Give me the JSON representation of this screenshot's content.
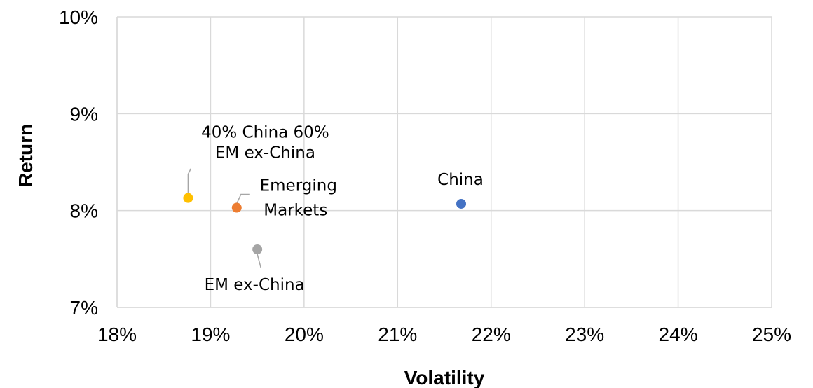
{
  "chart_data": {
    "type": "scatter",
    "title": "",
    "xlabel": "Volatility",
    "ylabel": "Return",
    "xlim": [
      0.18,
      0.25
    ],
    "ylim": [
      0.07,
      0.1
    ],
    "x_ticks": [
      0.18,
      0.19,
      0.2,
      0.21,
      0.22,
      0.23,
      0.24,
      0.25
    ],
    "y_ticks": [
      0.07,
      0.08,
      0.09,
      0.1
    ],
    "x_tick_labels": [
      "18%",
      "19%",
      "20%",
      "21%",
      "22%",
      "23%",
      "24%",
      "25%"
    ],
    "y_tick_labels": [
      "7%",
      "8%",
      "9%",
      "10%"
    ],
    "grid": true,
    "legend": "none",
    "points": [
      {
        "label": "40% China 60% EM ex-China",
        "label_lines": [
          "40% China 60%",
          "EM ex-China"
        ],
        "x": 0.1876,
        "y": 0.0813,
        "color": "#FFC000"
      },
      {
        "label": "Emerging Markets",
        "label_lines": [
          "Emerging",
          "Markets"
        ],
        "x": 0.1928,
        "y": 0.0803,
        "color": "#ED7D31"
      },
      {
        "label": "EM ex-China",
        "label_lines": [
          "EM ex-China"
        ],
        "x": 0.195,
        "y": 0.076,
        "color": "#A5A5A5"
      },
      {
        "label": "China",
        "label_lines": [
          "China"
        ],
        "x": 0.2168,
        "y": 0.0807,
        "color": "#4472C4"
      }
    ]
  }
}
